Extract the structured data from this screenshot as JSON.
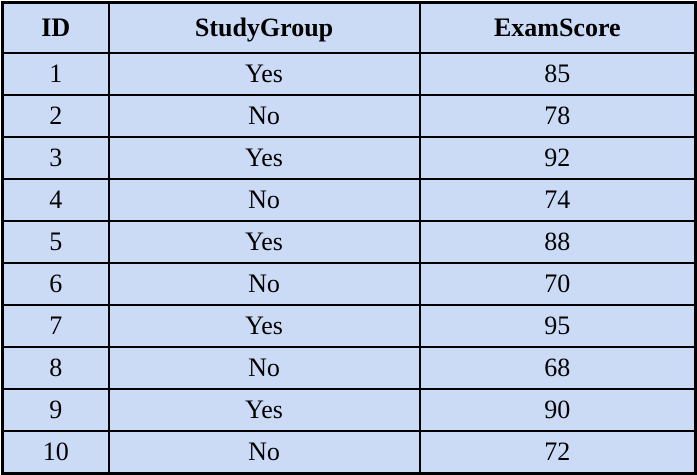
{
  "table": {
    "columns": [
      "ID",
      "StudyGroup",
      "ExamScore"
    ],
    "rows": [
      [
        "1",
        "Yes",
        "85"
      ],
      [
        "2",
        "No",
        "78"
      ],
      [
        "3",
        "Yes",
        "92"
      ],
      [
        "4",
        "No",
        "74"
      ],
      [
        "5",
        "Yes",
        "88"
      ],
      [
        "6",
        "No",
        "70"
      ],
      [
        "7",
        "Yes",
        "95"
      ],
      [
        "8",
        "No",
        "68"
      ],
      [
        "9",
        "Yes",
        "90"
      ],
      [
        "10",
        "No",
        "72"
      ]
    ]
  },
  "colors": {
    "cell_background": "#cbdbf6",
    "border": "#000000",
    "text": "#000000"
  }
}
